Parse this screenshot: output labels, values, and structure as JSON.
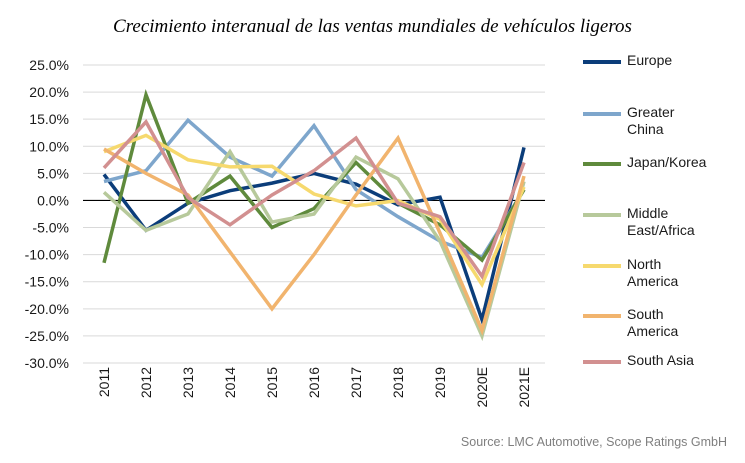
{
  "title": "Crecimiento interanual de las ventas mundiales de vehículos ligeros",
  "source": "Source: LMC Automotive, Scope Ratings GmbH",
  "chart_data": {
    "type": "line",
    "categories": [
      "2011",
      "2012",
      "2013",
      "2014",
      "2015",
      "2016",
      "2017",
      "2018",
      "2019",
      "2020E",
      "2021E"
    ],
    "ylim": [
      -30,
      25
    ],
    "yticks": [
      25,
      20,
      15,
      10,
      5,
      0,
      -5,
      -10,
      -15,
      -20,
      -25,
      -30
    ],
    "ytick_labels": [
      "25.0%",
      "20.0%",
      "15.0%",
      "10.0%",
      "5.0%",
      "0.0%",
      "-5.0%",
      "-10.0%",
      "-15.0%",
      "-20.0%",
      "-25.0%",
      "-30.0%"
    ],
    "grid": true,
    "legend_position": "right",
    "series": [
      {
        "name": "Europe",
        "color": "#0b3d7a",
        "values": [
          4.8,
          -5.5,
          -0.5,
          1.8,
          3.2,
          5.0,
          3.0,
          -0.8,
          0.6,
          -22.0,
          9.8
        ]
      },
      {
        "name": "Greater\nChina",
        "color": "#7ea6cc",
        "values": [
          3.5,
          5.5,
          14.8,
          8.0,
          4.5,
          13.8,
          2.0,
          -3.0,
          -7.5,
          -10.5,
          2.0
        ]
      },
      {
        "name": "Japan/Korea",
        "color": "#5f8a3c",
        "values": [
          -11.5,
          19.5,
          -0.5,
          4.5,
          -5.0,
          -1.5,
          7.0,
          -0.5,
          -4.5,
          -11.0,
          2.0
        ]
      },
      {
        "name": "Middle\nEast/Africa",
        "color": "#b7c99b",
        "values": [
          1.5,
          -5.5,
          -2.5,
          9.0,
          -4.0,
          -2.5,
          8.0,
          4.0,
          -7.5,
          -25.0,
          3.5
        ]
      },
      {
        "name": "North\nAmerica",
        "color": "#f6d96e",
        "values": [
          9.0,
          12.0,
          7.5,
          6.2,
          6.3,
          1.2,
          -1.0,
          0.0,
          -3.5,
          -15.5,
          2.5
        ]
      },
      {
        "name": "South\nAmerica",
        "color": "#f1b46e",
        "values": [
          9.5,
          5.0,
          1.0,
          -9.5,
          -20.0,
          -10.0,
          1.0,
          11.5,
          -6.0,
          -24.0,
          4.5
        ]
      },
      {
        "name": "South Asia",
        "color": "#d29090",
        "values": [
          6.0,
          14.5,
          0.5,
          -4.5,
          1.0,
          5.5,
          11.5,
          -0.5,
          -3.0,
          -14.0,
          7.0
        ]
      }
    ]
  }
}
